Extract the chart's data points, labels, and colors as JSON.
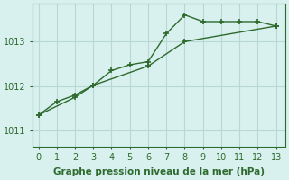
{
  "line1_x": [
    0,
    1,
    2,
    3,
    4,
    5,
    6,
    7,
    8,
    9,
    10,
    11,
    12,
    13
  ],
  "line1_y": [
    1011.35,
    1011.65,
    1011.8,
    1012.02,
    1012.35,
    1012.48,
    1012.55,
    1013.18,
    1013.6,
    1013.45,
    1013.45,
    1013.45,
    1013.45,
    1013.35
  ],
  "line2_x": [
    0,
    2,
    3,
    6,
    8,
    13
  ],
  "line2_y": [
    1011.35,
    1011.75,
    1012.02,
    1012.45,
    1013.0,
    1013.35
  ],
  "line_color": "#2d6a2d",
  "marker": "+",
  "markersize": 5,
  "linewidth": 1.0,
  "bg_color": "#d8f0ee",
  "grid_color": "#b8d8d4",
  "xlabel": "Graphe pression niveau de la mer (hPa)",
  "xlabel_fontsize": 7.5,
  "yticks": [
    1011,
    1012,
    1013
  ],
  "xticks": [
    0,
    1,
    2,
    3,
    4,
    5,
    6,
    7,
    8,
    9,
    10,
    11,
    12,
    13
  ],
  "ylim": [
    1010.65,
    1013.85
  ],
  "xlim": [
    -0.3,
    13.5
  ]
}
